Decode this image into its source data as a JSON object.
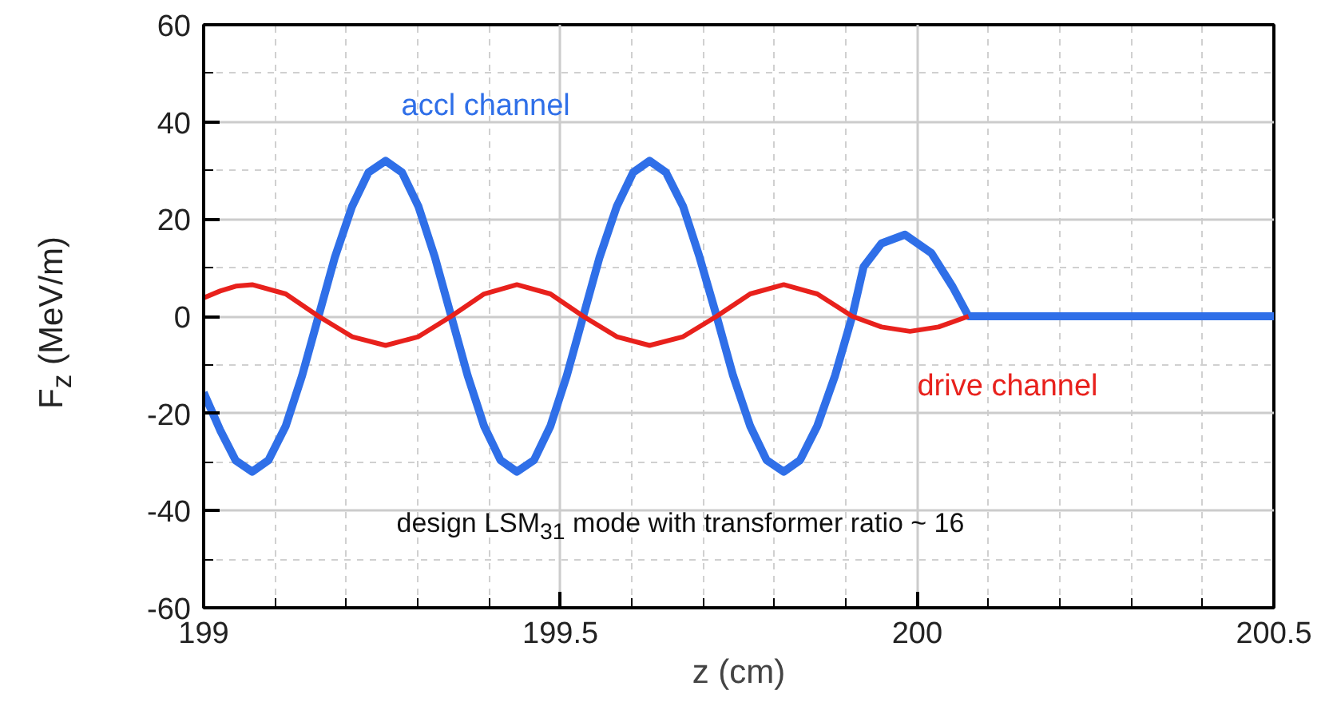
{
  "chart_data": {
    "type": "line",
    "xlabel": "z (cm)",
    "ylabel": "F$_{z}$ (MeV/m)",
    "xlim": [
      199,
      200.5
    ],
    "ylim": [
      -60,
      60
    ],
    "xticks": [
      199,
      {
        "value": 199.1,
        "label": null
      },
      {
        "value": 199.2,
        "label": null
      },
      {
        "value": 199.3,
        "label": null
      },
      {
        "value": 199.4,
        "label": null
      },
      199.5,
      {
        "value": 199.6,
        "label": null
      },
      {
        "value": 199.7,
        "label": null
      },
      {
        "value": 199.8,
        "label": null
      },
      {
        "value": 199.9,
        "label": null
      },
      200,
      {
        "value": 200.1,
        "label": null
      },
      {
        "value": 200.2,
        "label": null
      },
      {
        "value": 200.3,
        "label": null
      },
      {
        "value": 200.4,
        "label": null
      },
      200.5
    ],
    "yticks": [
      -60,
      {
        "value": -50,
        "label": null
      },
      -40,
      {
        "value": -30,
        "label": null
      },
      -20,
      {
        "value": -10,
        "label": null
      },
      0,
      {
        "value": 10,
        "label": null
      },
      20,
      {
        "value": 30,
        "label": null
      },
      40,
      {
        "value": 50,
        "label": null
      },
      60
    ],
    "grid": true,
    "legend": false,
    "marker": "none",
    "line_style": "solid",
    "annotations": [
      "design LSM$_{31}$ mode with transformer ratio ~ 16"
    ],
    "series": [
      {
        "name": "accl channel",
        "color": "#2f6fe8",
        "x": [
          199,
          199.023,
          199.045,
          199.068,
          199.091,
          199.115,
          199.138,
          199.161,
          199.184,
          199.208,
          199.231,
          199.255,
          199.278,
          199.301,
          199.324,
          199.347,
          199.37,
          199.393,
          199.416,
          199.439,
          199.463,
          199.486,
          199.509,
          199.532,
          199.555,
          199.579,
          199.602,
          199.625,
          199.648,
          199.672,
          199.695,
          199.719,
          199.742,
          199.766,
          199.789,
          199.813,
          199.836,
          199.86,
          199.885,
          199.909,
          199.925,
          199.95,
          199.983,
          200.02,
          200.05,
          200.072,
          200.5
        ],
        "values": [
          -15.7,
          -23.4,
          -29.7,
          -32,
          -29.6,
          -22.6,
          -12.2,
          0,
          12.2,
          22.6,
          29.6,
          32,
          29.6,
          22.6,
          12.2,
          0,
          -12.2,
          -22.6,
          -29.6,
          -32,
          -29.6,
          -22.6,
          -12.2,
          0,
          12.2,
          22.6,
          29.6,
          32,
          29.6,
          22.6,
          12.2,
          0,
          -12.2,
          -22.6,
          -29.6,
          -32,
          -29.6,
          -22.6,
          -12.2,
          0,
          10.2,
          15,
          16.8,
          13,
          6,
          0,
          0
        ]
      },
      {
        "name": "drive channel",
        "color": "#e8211c",
        "x": [
          199,
          199.023,
          199.045,
          199.068,
          199.115,
          199.161,
          199.208,
          199.255,
          199.301,
          199.347,
          199.393,
          199.439,
          199.486,
          199.532,
          199.579,
          199.625,
          199.672,
          199.719,
          199.766,
          199.813,
          199.86,
          199.909,
          199.95,
          199.99,
          200.03,
          200.072
        ],
        "values": [
          3.8,
          5.2,
          6.2,
          6.5,
          4.6,
          0,
          -4.2,
          -6,
          -4.2,
          0,
          4.6,
          6.5,
          4.6,
          0,
          -4.2,
          -6,
          -4.2,
          0,
          4.6,
          6.5,
          4.6,
          0,
          -2.2,
          -3.1,
          -2.2,
          0
        ]
      }
    ]
  }
}
